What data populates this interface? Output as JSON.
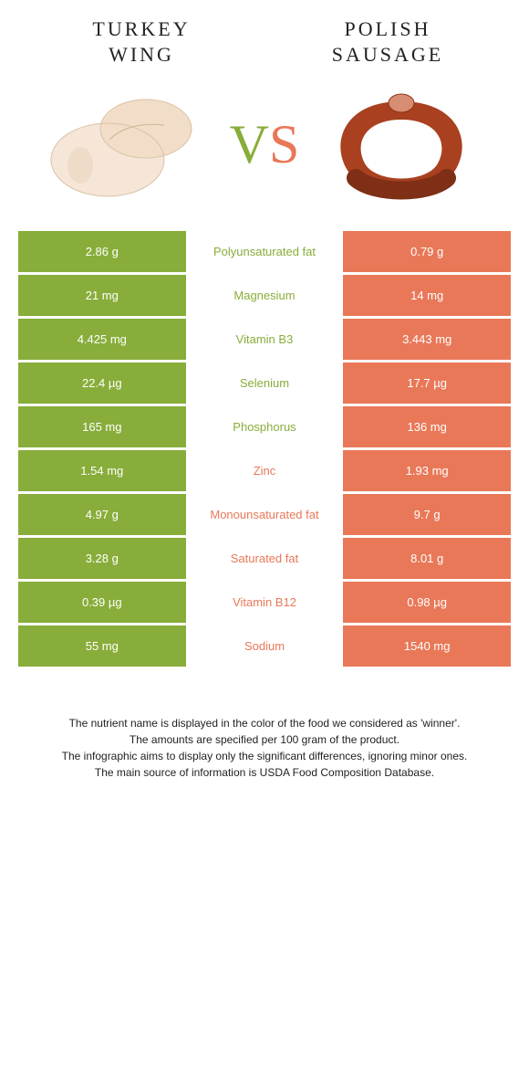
{
  "colors": {
    "left_food": "#88ad3a",
    "right_food": "#e97858",
    "mid_bg": "#ffffff",
    "text": "#ffffff"
  },
  "header": {
    "left_title_line1": "TURKEY",
    "left_title_line2": "WING",
    "right_title_line1": "POLISH",
    "right_title_line2": "SAUSAGE"
  },
  "vs": {
    "v": "V",
    "s": "S"
  },
  "rows": [
    {
      "left": "2.86 g",
      "label": "Polyunsaturated fat",
      "right": "0.79 g",
      "winner": "left"
    },
    {
      "left": "21 mg",
      "label": "Magnesium",
      "right": "14 mg",
      "winner": "left"
    },
    {
      "left": "4.425 mg",
      "label": "Vitamin B3",
      "right": "3.443 mg",
      "winner": "left"
    },
    {
      "left": "22.4 µg",
      "label": "Selenium",
      "right": "17.7 µg",
      "winner": "left"
    },
    {
      "left": "165 mg",
      "label": "Phosphorus",
      "right": "136 mg",
      "winner": "left"
    },
    {
      "left": "1.54 mg",
      "label": "Zinc",
      "right": "1.93 mg",
      "winner": "right"
    },
    {
      "left": "4.97 g",
      "label": "Monounsaturated fat",
      "right": "9.7 g",
      "winner": "right"
    },
    {
      "left": "3.28 g",
      "label": "Saturated fat",
      "right": "8.01 g",
      "winner": "right"
    },
    {
      "left": "0.39 µg",
      "label": "Vitamin B12",
      "right": "0.98 µg",
      "winner": "right"
    },
    {
      "left": "55 mg",
      "label": "Sodium",
      "right": "1540 mg",
      "winner": "right"
    }
  ],
  "footer": {
    "l1": "The nutrient name is displayed in the color of the food we considered as 'winner'.",
    "l2": "The amounts are specified per 100 gram of the product.",
    "l3": "The infographic aims to display only the significant differences, ignoring minor ones.",
    "l4": "The main source of information is USDA Food Composition Database."
  }
}
